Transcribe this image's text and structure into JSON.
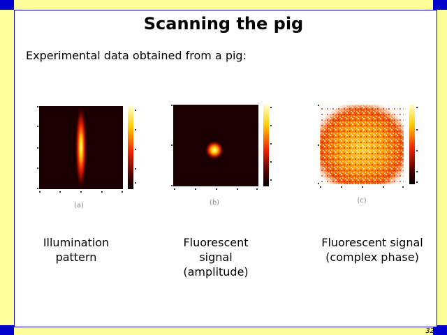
{
  "slide": {
    "title": "Scanning the pig",
    "subtitle": "Experimental data obtained from a pig:",
    "page_number": "32"
  },
  "figures": [
    {
      "label": "(a)",
      "caption": "Illumination pattern"
    },
    {
      "label": "(b)",
      "caption": "Fluorescent signal (amplitude)"
    },
    {
      "label": "(c)",
      "caption": "Fluorescent signal (complex phase)"
    }
  ],
  "colors": {
    "frame_yellow": "#ffff99",
    "frame_blue": "#0000cc",
    "heat_dark": "#1a0000",
    "heat_red": "#cc0000",
    "heat_orange": "#ff8800",
    "heat_yellow": "#ffff66"
  }
}
